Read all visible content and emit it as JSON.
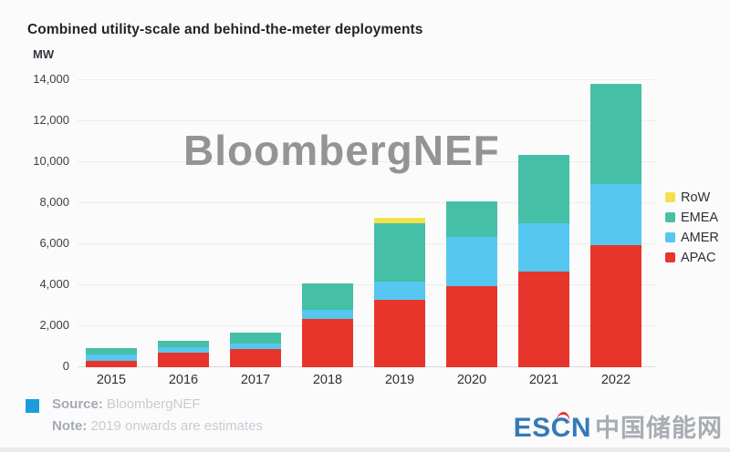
{
  "title": "Combined utility-scale and behind-the-meter deployments",
  "chart_data": {
    "type": "bar",
    "stacked": true,
    "unit_label": "MW",
    "title": "Combined utility-scale and behind-the-meter deployments",
    "categories": [
      "2015",
      "2016",
      "2017",
      "2018",
      "2019",
      "2020",
      "2021",
      "2022"
    ],
    "series": [
      {
        "name": "APAC",
        "color": "#e8352b",
        "values": [
          330,
          700,
          870,
          2340,
          3290,
          3950,
          4690,
          5960
        ]
      },
      {
        "name": "AMER",
        "color": "#56c7f0",
        "values": [
          300,
          270,
          290,
          470,
          890,
          2410,
          2340,
          2970
        ]
      },
      {
        "name": "EMEA",
        "color": "#45bfa5",
        "values": [
          290,
          330,
          550,
          1290,
          2860,
          1720,
          3310,
          4900
        ]
      },
      {
        "name": "RoW",
        "color": "#f2e14d",
        "values": [
          0,
          0,
          0,
          0,
          270,
          0,
          0,
          0
        ]
      }
    ],
    "legend_order": [
      "RoW",
      "EMEA",
      "AMER",
      "APAC"
    ],
    "legend_position": "right",
    "ylim": [
      0,
      14000
    ],
    "yticks": [
      "0",
      "2,000",
      "4,000",
      "6,000",
      "8,000",
      "10,000",
      "12,000",
      "14,000"
    ],
    "grid": "horizontal"
  },
  "watermark": {
    "text": "BloombergNEF"
  },
  "footer": {
    "source_label": "Source:",
    "source_value": "BloombergNEF",
    "note_label": "Note:",
    "note_value": "2019 onwards are estimates"
  },
  "branding": {
    "escn": "ESCN",
    "chinese": "中国储能网"
  },
  "colors": {
    "apac": "#e8352b",
    "amer": "#56c7f0",
    "emea": "#45bfa5",
    "row": "#f2e14d",
    "source_bullet": "#1b9ed9",
    "escn_blue": "#3579b8",
    "escn_accent": "#e8352b"
  }
}
